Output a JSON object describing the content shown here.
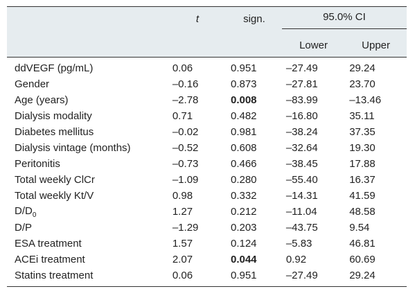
{
  "header": {
    "col_t": "t",
    "col_sign": "sign.",
    "col_ci": "95.0% CI",
    "col_lower": "Lower",
    "col_upper": "Upper"
  },
  "rows": [
    {
      "label": "ddVEGF (pg/mL)",
      "t": "0.06",
      "sign": "0.951",
      "lower": "–27.49",
      "upper": "29.24",
      "bold": false
    },
    {
      "label": "Gender",
      "t": "–0.16",
      "sign": "0.873",
      "lower": "–27.81",
      "upper": "23.70",
      "bold": false
    },
    {
      "label": "Age (years)",
      "t": "–2.78",
      "sign": "0.008",
      "lower": "–83.99",
      "upper": "–13.46",
      "bold": true
    },
    {
      "label": "Dialysis modality",
      "t": "0.71",
      "sign": "0.482",
      "lower": "–16.80",
      "upper": "35.11",
      "bold": false
    },
    {
      "label": "Diabetes mellitus",
      "t": "–0.02",
      "sign": "0.981",
      "lower": "–38.24",
      "upper": "37.35",
      "bold": false
    },
    {
      "label": "Dialysis vintage (months)",
      "t": "–0.52",
      "sign": "0.608",
      "lower": "–32.64",
      "upper": "19.30",
      "bold": false
    },
    {
      "label": "Peritonitis",
      "t": "–0.73",
      "sign": "0.466",
      "lower": "–38.45",
      "upper": "17.88",
      "bold": false
    },
    {
      "label": "Total weekly ClCr",
      "t": "–1.09",
      "sign": "0.280",
      "lower": "–55.40",
      "upper": "16.37",
      "bold": false
    },
    {
      "label": "Total weekly Kt/V",
      "t": "0.98",
      "sign": "0.332",
      "lower": "–14.31",
      "upper": "41.59",
      "bold": false
    },
    {
      "label": "D/D",
      "label_sub": "0",
      "t": "1.27",
      "sign": "0.212",
      "lower": "–11.04",
      "upper": "48.58",
      "bold": false
    },
    {
      "label": "D/P",
      "t": "–1.29",
      "sign": "0.203",
      "lower": "–43.75",
      "upper": "9.54",
      "bold": false
    },
    {
      "label": "ESA treatment",
      "t": "1.57",
      "sign": "0.124",
      "lower": "–5.83",
      "upper": "46.81",
      "bold": false
    },
    {
      "label": "ACEi treatment",
      "t": "2.07",
      "sign": "0.044",
      "lower": "0.92",
      "upper": "60.69",
      "bold": true
    },
    {
      "label": "Statins treatment",
      "t": "0.06",
      "sign": "0.951",
      "lower": "–27.49",
      "upper": "29.24",
      "bold": false
    }
  ]
}
